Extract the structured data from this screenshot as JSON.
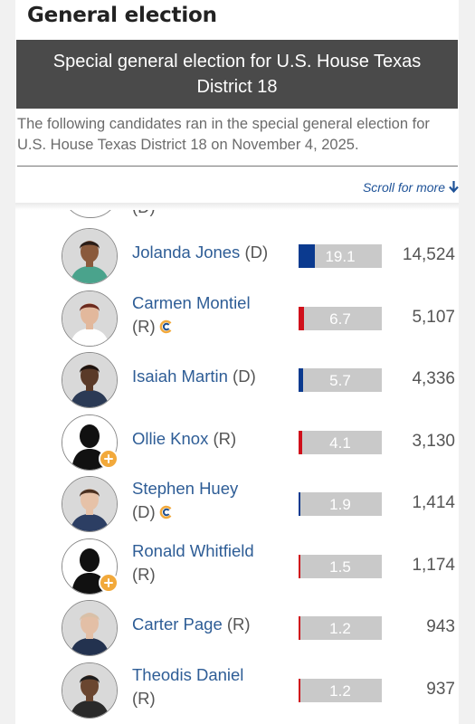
{
  "heading": "General election",
  "banner_title": "Special general election for U.S. House Texas District 18",
  "intro": "The following candidates ran in the special general election for U.S. House Texas District 18 on November 4, 2025.",
  "scroll_hint": "Scroll for more",
  "partial_row": {
    "party": "(D)"
  },
  "colors": {
    "dem": "#0b3a8f",
    "rep": "#d0101b",
    "bar_bg": "#c9c9c9",
    "link": "#2e5d96"
  },
  "candidates": [
    {
      "name": "Jolanda Jones",
      "party": "(D)",
      "pct": "19.1",
      "pct_value": 19.1,
      "votes": "14,524",
      "photo": "photo",
      "incumbent_icon": false
    },
    {
      "name": "Carmen Montiel",
      "party": "(R)",
      "pct": "6.7",
      "pct_value": 6.7,
      "votes": "5,107",
      "photo": "photo",
      "incumbent_icon": true
    },
    {
      "name": "Isaiah Martin",
      "party": "(D)",
      "pct": "5.7",
      "pct_value": 5.7,
      "votes": "4,336",
      "photo": "photo",
      "incumbent_icon": false
    },
    {
      "name": "Ollie Knox",
      "party": "(R)",
      "pct": "4.1",
      "pct_value": 4.1,
      "votes": "3,130",
      "photo": "placeholder-silhouette",
      "incumbent_icon": false
    },
    {
      "name": "Stephen Huey",
      "party": "(D)",
      "pct": "1.9",
      "pct_value": 1.9,
      "votes": "1,414",
      "photo": "photo",
      "incumbent_icon": true
    },
    {
      "name": "Ronald Whitfield",
      "party": "(R)",
      "pct": "1.5",
      "pct_value": 1.5,
      "votes": "1,174",
      "photo": "placeholder-silhouette",
      "incumbent_icon": false
    },
    {
      "name": "Carter Page",
      "party": "(R)",
      "pct": "1.2",
      "pct_value": 1.2,
      "votes": "943",
      "photo": "photo",
      "incumbent_icon": false
    },
    {
      "name": "Theodis Daniel",
      "party": "(R)",
      "pct": "1.2",
      "pct_value": 1.2,
      "votes": "937",
      "photo": "photo",
      "incumbent_icon": false
    }
  ]
}
